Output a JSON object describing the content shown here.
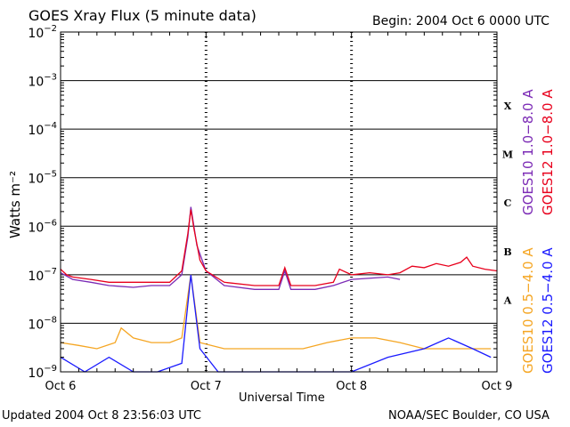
{
  "header": {
    "title": "GOES Xray Flux (5 minute data)",
    "begin": "Begin:  2004 Oct 6 0000 UTC"
  },
  "footer": {
    "updated": "Updated 2004 Oct  8 23:56:03 UTC",
    "credit": "NOAA/SEC Boulder, CO USA"
  },
  "colors": {
    "goes10_long": "#7b2ab5",
    "goes12_long": "#e8001c",
    "goes10_short": "#f5a623",
    "goes12_short": "#1a1aff"
  },
  "chart_data": {
    "type": "line",
    "title": "GOES Xray Flux (5 minute data)",
    "xlabel": "Universal Time",
    "ylabel": "Watts m⁻²",
    "y_scale": "log",
    "ylim": [
      1e-09,
      0.01
    ],
    "y_ticks": [
      {
        "value": 1e-09,
        "base": "10",
        "exp": "−9"
      },
      {
        "value": 1e-08,
        "base": "10",
        "exp": "−8"
      },
      {
        "value": 1e-07,
        "base": "10",
        "exp": "−7"
      },
      {
        "value": 1e-06,
        "base": "10",
        "exp": "−6"
      },
      {
        "value": 1e-05,
        "base": "10",
        "exp": "−5"
      },
      {
        "value": 0.0001,
        "base": "10",
        "exp": "−4"
      },
      {
        "value": 0.001,
        "base": "10",
        "exp": "−3"
      },
      {
        "value": 0.01,
        "base": "10",
        "exp": "−2"
      }
    ],
    "xlim": [
      "2004-10-06T00:00",
      "2004-10-09T00:00"
    ],
    "x_ticks": [
      {
        "value": "2004-10-06T00:00",
        "label": "Oct 6"
      },
      {
        "value": "2004-10-07T00:00",
        "label": "Oct 7"
      },
      {
        "value": "2004-10-08T00:00",
        "label": "Oct 8"
      },
      {
        "value": "2004-10-09T00:00",
        "label": "Oct 9"
      }
    ],
    "flare_classes": [
      {
        "label": "X",
        "value": 0.0003
      },
      {
        "label": "M",
        "value": 3e-05
      },
      {
        "label": "C",
        "value": 3e-06
      },
      {
        "label": "B",
        "value": 3e-07
      },
      {
        "label": "A",
        "value": 3e-08
      }
    ],
    "grid": true,
    "legend_position": "right",
    "series": [
      {
        "name": "GOES10 1.0−8.0 A",
        "color": "#7b2ab5",
        "points": [
          [
            "2004-10-06T00:00",
            1.1e-07
          ],
          [
            "2004-10-06T02:00",
            8e-08
          ],
          [
            "2004-10-06T05:00",
            7e-08
          ],
          [
            "2004-10-06T08:00",
            6e-08
          ],
          [
            "2004-10-06T12:00",
            5.5e-08
          ],
          [
            "2004-10-06T15:00",
            6e-08
          ],
          [
            "2004-10-06T18:00",
            6e-08
          ],
          [
            "2004-10-06T20:00",
            1e-07
          ],
          [
            "2004-10-06T21:00",
            6e-07
          ],
          [
            "2004-10-06T21:30",
            2.5e-06
          ],
          [
            "2004-10-06T22:30",
            4e-07
          ],
          [
            "2004-10-07T00:00",
            1.2e-07
          ],
          [
            "2004-10-07T03:00",
            6e-08
          ],
          [
            "2004-10-07T08:00",
            5e-08
          ],
          [
            "2004-10-07T12:00",
            5e-08
          ],
          [
            "2004-10-07T13:00",
            1.2e-07
          ],
          [
            "2004-10-07T14:00",
            5e-08
          ],
          [
            "2004-10-07T18:00",
            5e-08
          ],
          [
            "2004-10-07T21:00",
            6e-08
          ],
          [
            "2004-10-08T00:00",
            8e-08
          ],
          [
            "2004-10-08T06:00",
            9e-08
          ],
          [
            "2004-10-08T08:00",
            8e-08
          ]
        ]
      },
      {
        "name": "GOES12 1.0−8.0 A",
        "color": "#e8001c",
        "points": [
          [
            "2004-10-06T00:00",
            1.3e-07
          ],
          [
            "2004-10-06T01:00",
            1e-07
          ],
          [
            "2004-10-06T02:00",
            9e-08
          ],
          [
            "2004-10-06T05:00",
            8e-08
          ],
          [
            "2004-10-06T08:00",
            7e-08
          ],
          [
            "2004-10-06T12:00",
            7e-08
          ],
          [
            "2004-10-06T15:00",
            7e-08
          ],
          [
            "2004-10-06T18:00",
            7e-08
          ],
          [
            "2004-10-06T20:00",
            1.2e-07
          ],
          [
            "2004-10-06T21:00",
            7e-07
          ],
          [
            "2004-10-06T21:30",
            2.2e-06
          ],
          [
            "2004-10-06T22:00",
            9e-07
          ],
          [
            "2004-10-06T23:00",
            2e-07
          ],
          [
            "2004-10-07T00:00",
            1.2e-07
          ],
          [
            "2004-10-07T03:00",
            7e-08
          ],
          [
            "2004-10-07T08:00",
            6e-08
          ],
          [
            "2004-10-07T12:00",
            6e-08
          ],
          [
            "2004-10-07T13:00",
            1.4e-07
          ],
          [
            "2004-10-07T14:00",
            6e-08
          ],
          [
            "2004-10-07T18:00",
            6e-08
          ],
          [
            "2004-10-07T21:00",
            7e-08
          ],
          [
            "2004-10-07T22:00",
            1.3e-07
          ],
          [
            "2004-10-08T00:00",
            1e-07
          ],
          [
            "2004-10-08T03:00",
            1.1e-07
          ],
          [
            "2004-10-08T06:00",
            1e-07
          ],
          [
            "2004-10-08T08:00",
            1.1e-07
          ],
          [
            "2004-10-08T10:00",
            1.5e-07
          ],
          [
            "2004-10-08T12:00",
            1.4e-07
          ],
          [
            "2004-10-08T14:00",
            1.7e-07
          ],
          [
            "2004-10-08T16:00",
            1.5e-07
          ],
          [
            "2004-10-08T18:00",
            1.8e-07
          ],
          [
            "2004-10-08T19:00",
            2.3e-07
          ],
          [
            "2004-10-08T20:00",
            1.5e-07
          ],
          [
            "2004-10-08T22:00",
            1.3e-07
          ],
          [
            "2004-10-09T00:00",
            1.2e-07
          ]
        ]
      },
      {
        "name": "GOES10 0.5−4.0 A",
        "color": "#f5a623",
        "points": [
          [
            "2004-10-06T00:00",
            4e-09
          ],
          [
            "2004-10-06T03:00",
            3.5e-09
          ],
          [
            "2004-10-06T06:00",
            3e-09
          ],
          [
            "2004-10-06T09:00",
            4e-09
          ],
          [
            "2004-10-06T10:00",
            8e-09
          ],
          [
            "2004-10-06T12:00",
            5e-09
          ],
          [
            "2004-10-06T15:00",
            4e-09
          ],
          [
            "2004-10-06T18:00",
            4e-09
          ],
          [
            "2004-10-06T20:00",
            5e-09
          ],
          [
            "2004-10-06T21:30",
            1e-07
          ],
          [
            "2004-10-06T23:00",
            4e-09
          ],
          [
            "2004-10-07T03:00",
            3e-09
          ],
          [
            "2004-10-07T08:00",
            3e-09
          ],
          [
            "2004-10-07T12:00",
            3e-09
          ],
          [
            "2004-10-07T16:00",
            3e-09
          ],
          [
            "2004-10-07T20:00",
            4e-09
          ],
          [
            "2004-10-08T00:00",
            5e-09
          ],
          [
            "2004-10-08T04:00",
            5e-09
          ],
          [
            "2004-10-08T08:00",
            4e-09
          ],
          [
            "2004-10-08T12:00",
            3e-09
          ],
          [
            "2004-10-08T16:00",
            3e-09
          ],
          [
            "2004-10-08T20:00",
            3e-09
          ],
          [
            "2004-10-08T23:00",
            3e-09
          ]
        ]
      },
      {
        "name": "GOES12 0.5−4.0 A",
        "color": "#1a1aff",
        "points": [
          [
            "2004-10-06T00:00",
            2e-09
          ],
          [
            "2004-10-06T04:00",
            1e-09
          ],
          [
            "2004-10-06T08:00",
            2e-09
          ],
          [
            "2004-10-06T12:00",
            1e-09
          ],
          [
            "2004-10-06T16:00",
            1e-09
          ],
          [
            "2004-10-06T20:00",
            1.5e-09
          ],
          [
            "2004-10-06T21:30",
            1e-07
          ],
          [
            "2004-10-06T23:00",
            3e-09
          ],
          [
            "2004-10-07T02:00",
            1e-09
          ],
          [
            "2004-10-07T06:00",
            1e-09
          ],
          [
            "2004-10-07T12:00",
            1e-09
          ],
          [
            "2004-10-07T18:00",
            1e-09
          ],
          [
            "2004-10-08T00:00",
            1e-09
          ],
          [
            "2004-10-08T06:00",
            2e-09
          ],
          [
            "2004-10-08T12:00",
            3e-09
          ],
          [
            "2004-10-08T16:00",
            5e-09
          ],
          [
            "2004-10-08T20:00",
            3e-09
          ],
          [
            "2004-10-08T23:00",
            2e-09
          ]
        ]
      }
    ]
  }
}
